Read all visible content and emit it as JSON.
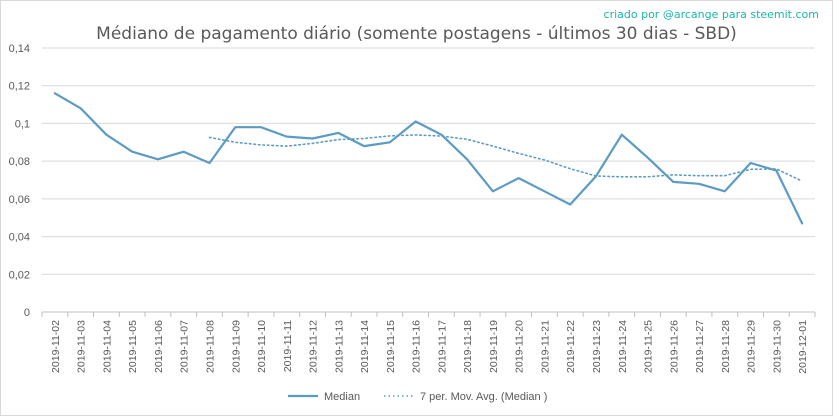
{
  "credit": "criado por @arcange para steemit.com",
  "chart_data": {
    "type": "line",
    "title": "Médiano de pagamento diário (somente postagens - últimos 30 dias - SBD)",
    "xlabel": "",
    "ylabel": "",
    "ylim": [
      0,
      0.14
    ],
    "yticks": [
      "0",
      "0,02",
      "0,04",
      "0,06",
      "0,08",
      "0,1",
      "0,12",
      "0,14"
    ],
    "grid": true,
    "legend": "bottom",
    "colors": {
      "series": "#5b9bc4"
    },
    "categories": [
      "2019-11-02",
      "2019-11-03",
      "2019-11-04",
      "2019-11-05",
      "2019-11-06",
      "2019-11-07",
      "2019-11-08",
      "2019-11-09",
      "2019-11-10",
      "2019-11-11",
      "2019-11-12",
      "2019-11-13",
      "2019-11-14",
      "2019-11-15",
      "2019-11-16",
      "2019-11-17",
      "2019-11-18",
      "2019-11-19",
      "2019-11-20",
      "2019-11-21",
      "2019-11-22",
      "2019-11-23",
      "2019-11-24",
      "2019-11-25",
      "2019-11-26",
      "2019-11-27",
      "2019-11-28",
      "2019-11-29",
      "2019-11-30",
      "2019-12-01"
    ],
    "series": [
      {
        "name": "Median",
        "style": "solid",
        "values": [
          0.116,
          0.108,
          0.094,
          0.085,
          0.081,
          0.085,
          0.079,
          0.098,
          0.098,
          0.093,
          0.092,
          0.095,
          0.088,
          0.09,
          0.101,
          0.094,
          0.081,
          0.064,
          0.071,
          0.064,
          0.057,
          0.072,
          0.094,
          0.082,
          0.069,
          0.068,
          0.064,
          0.079,
          0.075,
          0.047
        ]
      },
      {
        "name": "7 per. Mov. Avg. (Median )",
        "style": "dotted",
        "values": [
          null,
          null,
          null,
          null,
          null,
          null,
          0.0926,
          0.09,
          0.0886,
          0.088,
          0.0894,
          0.0914,
          0.092,
          0.0934,
          0.0939,
          0.0933,
          0.0916,
          0.088,
          0.0841,
          0.0806,
          0.076,
          0.0721,
          0.0717,
          0.0717,
          0.0727,
          0.0723,
          0.0723,
          0.0757,
          0.0759,
          0.0694
        ]
      }
    ]
  }
}
